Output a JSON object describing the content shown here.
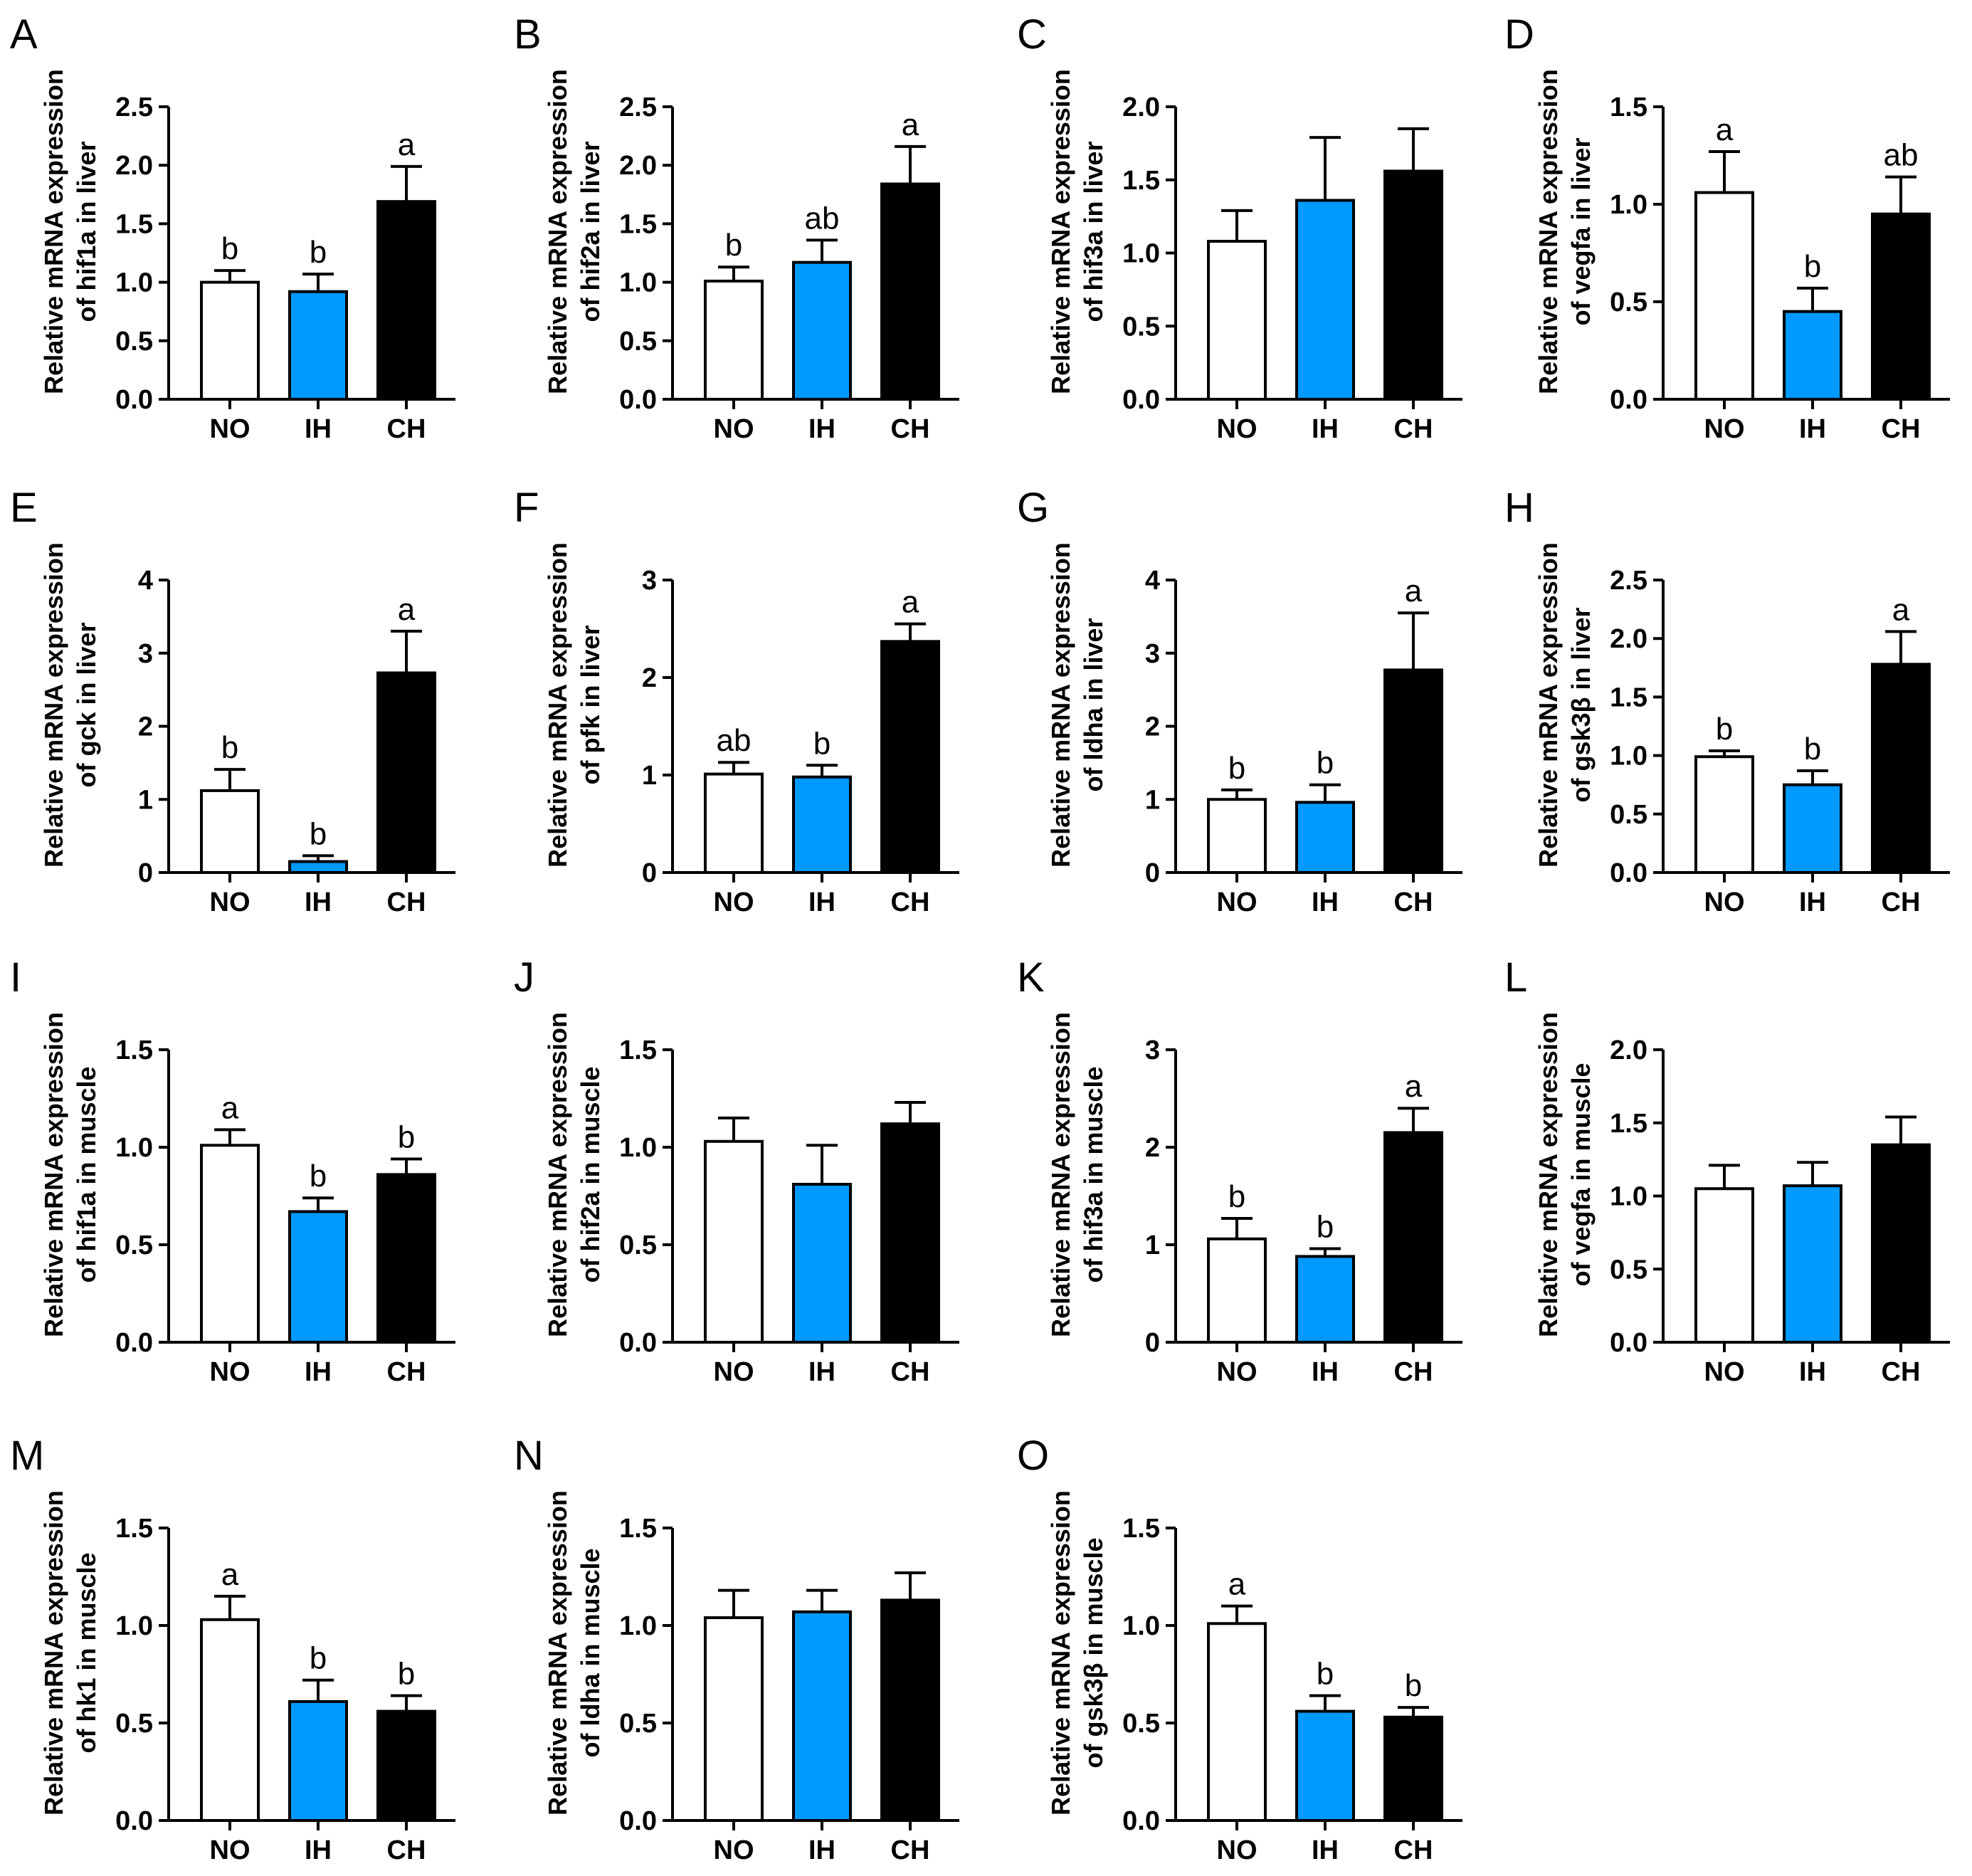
{
  "colors": {
    "NO": "#ffffff",
    "IH": "#0099ff",
    "CH": "#000000"
  },
  "chart_data": [
    {
      "panel": "A",
      "type": "bar",
      "categories": [
        "NO",
        "IH",
        "CH"
      ],
      "values": [
        1.0,
        0.92,
        1.69
      ],
      "errors": [
        0.1,
        0.15,
        0.3
      ],
      "sig": [
        "b",
        "b",
        "a"
      ],
      "ylabel": [
        "Relative mRNA expression",
        "of hif1a in liver"
      ],
      "ylim": [
        0,
        2.5
      ],
      "yticks": [
        "0.0",
        "0.5",
        "1.0",
        "1.5",
        "2.0",
        "2.5"
      ]
    },
    {
      "panel": "B",
      "type": "bar",
      "categories": [
        "NO",
        "IH",
        "CH"
      ],
      "values": [
        1.01,
        1.17,
        1.84
      ],
      "errors": [
        0.12,
        0.19,
        0.32
      ],
      "sig": [
        "b",
        "ab",
        "a"
      ],
      "ylabel": [
        "Relative mRNA expression",
        "of hif2a in liver"
      ],
      "ylim": [
        0,
        2.5
      ],
      "yticks": [
        "0.0",
        "0.5",
        "1.0",
        "1.5",
        "2.0",
        "2.5"
      ]
    },
    {
      "panel": "C",
      "type": "bar",
      "categories": [
        "NO",
        "IH",
        "CH"
      ],
      "values": [
        1.08,
        1.36,
        1.56
      ],
      "errors": [
        0.21,
        0.43,
        0.29
      ],
      "sig": [
        "",
        "",
        ""
      ],
      "ylabel": [
        "Relative mRNA expression",
        "of hif3a in liver"
      ],
      "ylim": [
        0,
        2.0
      ],
      "yticks": [
        "0.0",
        "0.5",
        "1.0",
        "1.5",
        "2.0"
      ]
    },
    {
      "panel": "D",
      "type": "bar",
      "categories": [
        "NO",
        "IH",
        "CH"
      ],
      "values": [
        1.06,
        0.45,
        0.95
      ],
      "errors": [
        0.21,
        0.12,
        0.19
      ],
      "sig": [
        "a",
        "b",
        "ab"
      ],
      "ylabel": [
        "Relative mRNA expression",
        "of vegfa in liver"
      ],
      "ylim": [
        0,
        1.5
      ],
      "yticks": [
        "0.0",
        "0.5",
        "1.0",
        "1.5"
      ]
    },
    {
      "panel": "E",
      "type": "bar",
      "categories": [
        "NO",
        "IH",
        "CH"
      ],
      "values": [
        1.12,
        0.15,
        2.73
      ],
      "errors": [
        0.29,
        0.08,
        0.57
      ],
      "sig": [
        "b",
        "b",
        "a"
      ],
      "ylabel": [
        "Relative mRNA expression",
        "of gck in liver"
      ],
      "ylim": [
        0,
        4
      ],
      "yticks": [
        "0",
        "1",
        "2",
        "3",
        "4"
      ]
    },
    {
      "panel": "F",
      "type": "bar",
      "categories": [
        "NO",
        "IH",
        "CH"
      ],
      "values": [
        1.01,
        0.98,
        2.37
      ],
      "errors": [
        0.12,
        0.12,
        0.18
      ],
      "sig": [
        "ab",
        "b",
        "a"
      ],
      "ylabel": [
        "Relative mRNA expression",
        "of pfk in liver"
      ],
      "ylim": [
        0,
        3
      ],
      "yticks": [
        "0",
        "1",
        "2",
        "3"
      ]
    },
    {
      "panel": "G",
      "type": "bar",
      "categories": [
        "NO",
        "IH",
        "CH"
      ],
      "values": [
        1.0,
        0.96,
        2.77
      ],
      "errors": [
        0.13,
        0.24,
        0.78
      ],
      "sig": [
        "b",
        "b",
        "a"
      ],
      "ylabel": [
        "Relative mRNA expression",
        "of ldha in liver"
      ],
      "ylim": [
        0,
        4
      ],
      "yticks": [
        "0",
        "1",
        "2",
        "3",
        "4"
      ]
    },
    {
      "panel": "H",
      "type": "bar",
      "categories": [
        "NO",
        "IH",
        "CH"
      ],
      "values": [
        0.99,
        0.75,
        1.78
      ],
      "errors": [
        0.05,
        0.12,
        0.28
      ],
      "sig": [
        "b",
        "b",
        "a"
      ],
      "ylabel": [
        "Relative mRNA expression",
        "of gsk3β in liver"
      ],
      "ylim": [
        0,
        2.5
      ],
      "yticks": [
        "0.0",
        "0.5",
        "1.0",
        "1.5",
        "2.0",
        "2.5"
      ]
    },
    {
      "panel": "I",
      "type": "bar",
      "categories": [
        "NO",
        "IH",
        "CH"
      ],
      "values": [
        1.01,
        0.67,
        0.86
      ],
      "errors": [
        0.08,
        0.07,
        0.08
      ],
      "sig": [
        "a",
        "b",
        "b"
      ],
      "ylabel": [
        "Relative mRNA expression",
        "of hif1a in muscle"
      ],
      "ylim": [
        0,
        1.5
      ],
      "yticks": [
        "0.0",
        "0.5",
        "1.0",
        "1.5"
      ]
    },
    {
      "panel": "J",
      "type": "bar",
      "categories": [
        "NO",
        "IH",
        "CH"
      ],
      "values": [
        1.03,
        0.81,
        1.12
      ],
      "errors": [
        0.12,
        0.2,
        0.11
      ],
      "sig": [
        "",
        "",
        ""
      ],
      "ylabel": [
        "Relative mRNA expression",
        "of hif2a in muscle"
      ],
      "ylim": [
        0,
        1.5
      ],
      "yticks": [
        "0.0",
        "0.5",
        "1.0",
        "1.5"
      ]
    },
    {
      "panel": "K",
      "type": "bar",
      "categories": [
        "NO",
        "IH",
        "CH"
      ],
      "values": [
        1.06,
        0.88,
        2.15
      ],
      "errors": [
        0.21,
        0.08,
        0.25
      ],
      "sig": [
        "b",
        "b",
        "a"
      ],
      "ylabel": [
        "Relative mRNA expression",
        "of hif3a in muscle"
      ],
      "ylim": [
        0,
        3
      ],
      "yticks": [
        "0",
        "1",
        "2",
        "3"
      ]
    },
    {
      "panel": "L",
      "type": "bar",
      "categories": [
        "NO",
        "IH",
        "CH"
      ],
      "values": [
        1.05,
        1.07,
        1.35
      ],
      "errors": [
        0.16,
        0.16,
        0.19
      ],
      "sig": [
        "",
        "",
        ""
      ],
      "ylabel": [
        "Relative mRNA expression",
        "of vegfa in muscle"
      ],
      "ylim": [
        0,
        2.0
      ],
      "yticks": [
        "0.0",
        "0.5",
        "1.0",
        "1.5",
        "2.0"
      ]
    },
    {
      "panel": "M",
      "type": "bar",
      "categories": [
        "NO",
        "IH",
        "CH"
      ],
      "values": [
        1.03,
        0.61,
        0.56
      ],
      "errors": [
        0.12,
        0.11,
        0.08
      ],
      "sig": [
        "a",
        "b",
        "b"
      ],
      "ylabel": [
        "Relative mRNA expression",
        "of hk1 in muscle"
      ],
      "ylim": [
        0,
        1.5
      ],
      "yticks": [
        "0.0",
        "0.5",
        "1.0",
        "1.5"
      ]
    },
    {
      "panel": "N",
      "type": "bar",
      "categories": [
        "NO",
        "IH",
        "CH"
      ],
      "values": [
        1.04,
        1.07,
        1.13
      ],
      "errors": [
        0.14,
        0.11,
        0.14
      ],
      "sig": [
        "",
        "",
        ""
      ],
      "ylabel": [
        "Relative mRNA expression",
        "of ldha in muscle"
      ],
      "ylim": [
        0,
        1.5
      ],
      "yticks": [
        "0.0",
        "0.5",
        "1.0",
        "1.5"
      ]
    },
    {
      "panel": "O",
      "type": "bar",
      "categories": [
        "NO",
        "IH",
        "CH"
      ],
      "values": [
        1.01,
        0.56,
        0.53
      ],
      "errors": [
        0.09,
        0.08,
        0.05
      ],
      "sig": [
        "a",
        "b",
        "b"
      ],
      "ylabel": [
        "Relative mRNA expression",
        "of gsk3β in muscle"
      ],
      "ylim": [
        0,
        1.5
      ],
      "yticks": [
        "0.0",
        "0.5",
        "1.0",
        "1.5"
      ]
    }
  ]
}
